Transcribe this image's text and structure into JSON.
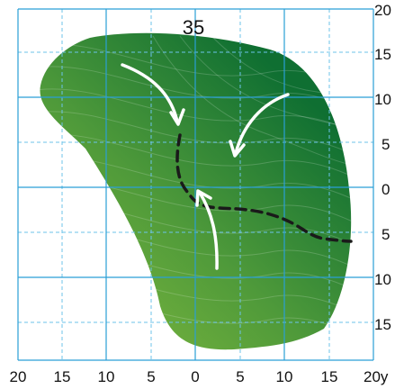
{
  "hole_number": "35",
  "x_axis_labels": [
    "20",
    "15",
    "10",
    "5",
    "0",
    "5",
    "10",
    "15",
    "20y"
  ],
  "y_axis_labels": [
    "20",
    "15",
    "10",
    "5",
    "0",
    "5",
    "10",
    "15"
  ],
  "colors": {
    "grid_major": "#2a9fd6",
    "grid_minor": "#6cc3ea",
    "green_light": "#6fae3c",
    "green_dark": "#0f6f32",
    "break_line": "#1a1a1a",
    "slope_arrow": "#ffffff"
  },
  "icons": [
    "slope-arrow-icon",
    "slope-arrow-icon",
    "slope-arrow-icon"
  ]
}
